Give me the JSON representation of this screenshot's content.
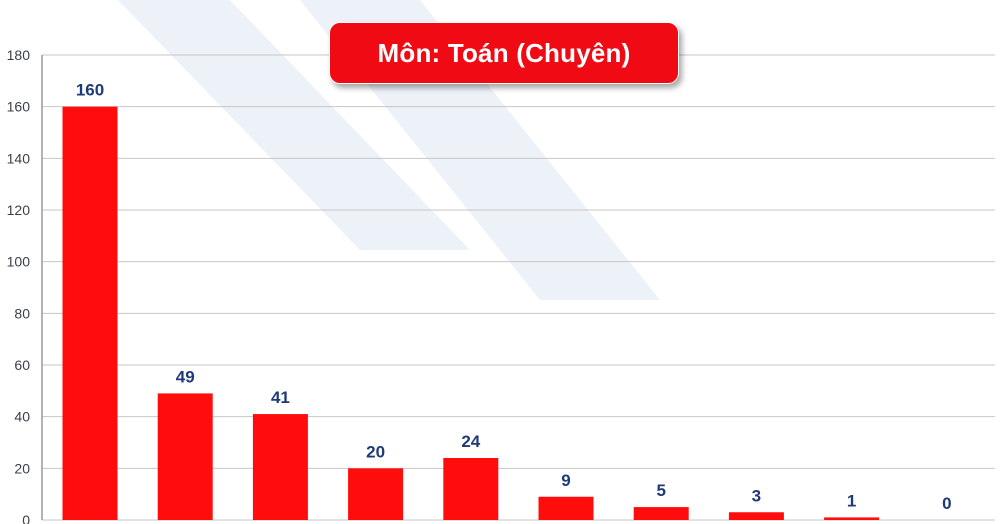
{
  "chart_data": {
    "type": "bar",
    "title": "Môn: Toán (Chuyên)",
    "categories": [
      "",
      "",
      "",
      "",
      "",
      "",
      "",
      "",
      "",
      ""
    ],
    "values": [
      160,
      49,
      41,
      20,
      24,
      9,
      5,
      3,
      1,
      0
    ],
    "data_labels": [
      "160",
      "49",
      "41",
      "20",
      "24",
      "9",
      "5",
      "3",
      "1",
      "0"
    ],
    "ylim": [
      0,
      180
    ],
    "y_ticks": [
      "0",
      "20",
      "40",
      "60",
      "80",
      "100",
      "120",
      "140",
      "160",
      "180"
    ],
    "grid": true,
    "xlabel": "",
    "ylabel": "",
    "colors": {
      "bar": "#ff0d0d",
      "title_bg": "#ef0a14",
      "value_label": "#1f3a78",
      "grid": "#c7c7c7"
    }
  }
}
